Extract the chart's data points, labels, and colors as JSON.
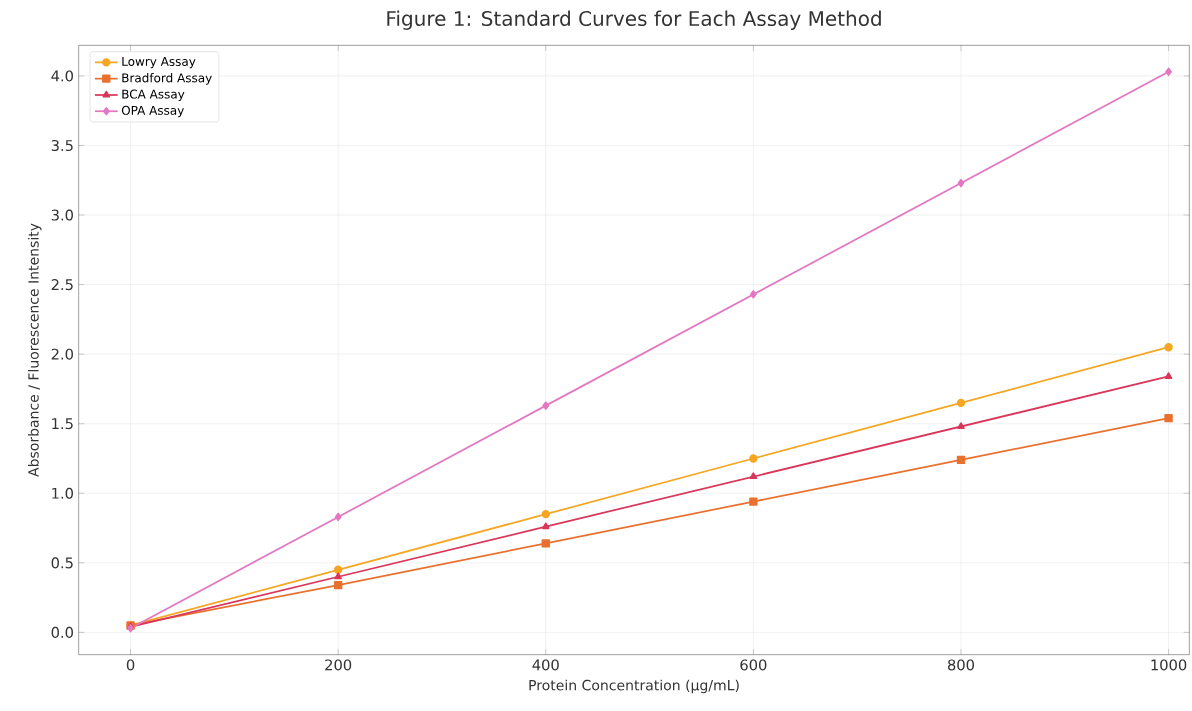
{
  "chart_data": {
    "type": "line",
    "title": "Figure 1: Standard Curves for Each Assay Method",
    "xlabel": "Protein Concentration (µg/mL)",
    "ylabel": "Absorbance / Fluorescence Intensity",
    "x": [
      0,
      200,
      400,
      600,
      800,
      1000
    ],
    "series": [
      {
        "name": "Lowry Assay",
        "color": "#f5a623",
        "marker": "circle",
        "values": [
          0.05,
          0.45,
          0.85,
          1.25,
          1.65,
          2.05
        ]
      },
      {
        "name": "Bradford Assay",
        "color": "#e8712f",
        "marker": "square",
        "values": [
          0.05,
          0.34,
          0.64,
          0.94,
          1.24,
          1.54
        ]
      },
      {
        "name": "BCA Assay",
        "color": "#d9365a",
        "marker": "triangle",
        "values": [
          0.04,
          0.4,
          0.76,
          1.12,
          1.48,
          1.84
        ]
      },
      {
        "name": "OPA Assay",
        "color": "#e377c2",
        "marker": "diamond",
        "values": [
          0.03,
          0.83,
          1.63,
          2.43,
          3.23,
          4.03
        ]
      }
    ],
    "xlim": [
      -50,
      1020
    ],
    "ylim": [
      -0.16,
      4.22
    ],
    "xticks": [
      0,
      200,
      400,
      600,
      800,
      1000
    ],
    "yticks": [
      {
        "value": 0,
        "label": "0.0"
      },
      {
        "value": 0.5,
        "label": "0.5"
      },
      {
        "value": 1,
        "label": "1.0"
      },
      {
        "value": 1.5,
        "label": "1.5"
      },
      {
        "value": 2,
        "label": "2.0"
      },
      {
        "value": 2.5,
        "label": "2.5"
      },
      {
        "value": 3,
        "label": "3.0"
      },
      {
        "value": 3.5,
        "label": "3.5"
      },
      {
        "value": 4,
        "label": "4.0"
      }
    ],
    "grid": true,
    "legend": "top left",
    "line_style": "solid"
  }
}
